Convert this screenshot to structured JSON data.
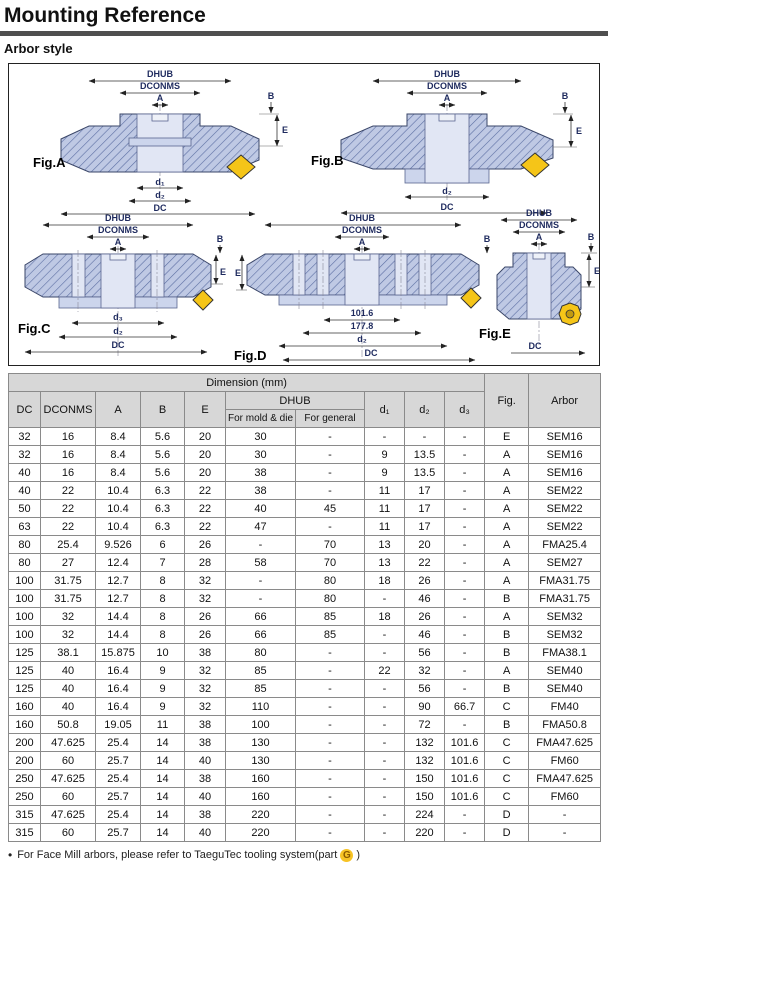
{
  "page": {
    "title": "Mounting Reference",
    "subtitle": "Arbor style",
    "footnote": {
      "bullet": "•",
      "prefix": "For Face Mill arbors, please refer to TaeguTec tooling system(part",
      "g": "G",
      "suffix": ")"
    }
  },
  "colors": {
    "insert_yellow": "#f5c518",
    "body_blue": "#bfc9e4",
    "hatch_blue": "#5d6fa3",
    "header_gray": "#d7d7d7",
    "title_rule_gray": "#4f4f4f"
  },
  "figures": [
    {
      "name": "Fig.A",
      "labels": {
        "dhub": "DHUB",
        "dconms": "DCONMS",
        "a": "A",
        "b": "B",
        "e": "E",
        "d1": "d₁",
        "d2": "d₂",
        "dc": "DC"
      }
    },
    {
      "name": "Fig.B",
      "labels": {
        "dhub": "DHUB",
        "dconms": "DCONMS",
        "a": "A",
        "b": "B",
        "e": "E",
        "d2": "d₂",
        "dc": "DC"
      }
    },
    {
      "name": "Fig.C",
      "labels": {
        "dhub": "DHUB",
        "dconms": "DCONMS",
        "a": "A",
        "b": "B",
        "e": "E",
        "d3": "d₃",
        "d2": "d₂",
        "dc": "DC"
      }
    },
    {
      "name": "Fig.D",
      "labels": {
        "dhub": "DHUB",
        "dconms": "DCONMS",
        "a": "A",
        "b": "B",
        "e": "E",
        "dim1": "101.6",
        "dim2": "177.8",
        "d2": "d₂",
        "dc": "DC"
      }
    },
    {
      "name": "Fig.E",
      "labels": {
        "dhub": "DHUB",
        "dconms": "DCONMS",
        "a": "A",
        "b": "B",
        "e": "E",
        "dc": "DC"
      }
    }
  ],
  "table": {
    "title": "Dimension (mm)",
    "headers": {
      "dc": "DC",
      "dconms": "DCONMS",
      "a": "A",
      "b": "B",
      "e": "E",
      "dhub": "DHUB",
      "mold": "For mold & die",
      "general": "For general",
      "d1": "d₁",
      "d2": "d₂",
      "d3": "d₃",
      "fig": "Fig.",
      "arbor": "Arbor"
    },
    "rows": [
      [
        "32",
        "16",
        "8.4",
        "5.6",
        "20",
        "30",
        "-",
        "-",
        "-",
        "-",
        "E",
        "SEM16"
      ],
      [
        "32",
        "16",
        "8.4",
        "5.6",
        "20",
        "30",
        "-",
        "9",
        "13.5",
        "-",
        "A",
        "SEM16"
      ],
      [
        "40",
        "16",
        "8.4",
        "5.6",
        "20",
        "38",
        "-",
        "9",
        "13.5",
        "-",
        "A",
        "SEM16"
      ],
      [
        "40",
        "22",
        "10.4",
        "6.3",
        "22",
        "38",
        "-",
        "11",
        "17",
        "-",
        "A",
        "SEM22"
      ],
      [
        "50",
        "22",
        "10.4",
        "6.3",
        "22",
        "40",
        "45",
        "11",
        "17",
        "-",
        "A",
        "SEM22"
      ],
      [
        "63",
        "22",
        "10.4",
        "6.3",
        "22",
        "47",
        "-",
        "11",
        "17",
        "-",
        "A",
        "SEM22"
      ],
      [
        "80",
        "25.4",
        "9.526",
        "6",
        "26",
        "-",
        "70",
        "13",
        "20",
        "-",
        "A",
        "FMA25.4"
      ],
      [
        "80",
        "27",
        "12.4",
        "7",
        "28",
        "58",
        "70",
        "13",
        "22",
        "-",
        "A",
        "SEM27"
      ],
      [
        "100",
        "31.75",
        "12.7",
        "8",
        "32",
        "-",
        "80",
        "18",
        "26",
        "-",
        "A",
        "FMA31.75"
      ],
      [
        "100",
        "31.75",
        "12.7",
        "8",
        "32",
        "-",
        "80",
        "-",
        "46",
        "-",
        "B",
        "FMA31.75"
      ],
      [
        "100",
        "32",
        "14.4",
        "8",
        "26",
        "66",
        "85",
        "18",
        "26",
        "-",
        "A",
        "SEM32"
      ],
      [
        "100",
        "32",
        "14.4",
        "8",
        "26",
        "66",
        "85",
        "-",
        "46",
        "-",
        "B",
        "SEM32"
      ],
      [
        "125",
        "38.1",
        "15.875",
        "10",
        "38",
        "80",
        "-",
        "-",
        "56",
        "-",
        "B",
        "FMA38.1"
      ],
      [
        "125",
        "40",
        "16.4",
        "9",
        "32",
        "85",
        "-",
        "22",
        "32",
        "-",
        "A",
        "SEM40"
      ],
      [
        "125",
        "40",
        "16.4",
        "9",
        "32",
        "85",
        "-",
        "-",
        "56",
        "-",
        "B",
        "SEM40"
      ],
      [
        "160",
        "40",
        "16.4",
        "9",
        "32",
        "110",
        "-",
        "-",
        "90",
        "66.7",
        "C",
        "FM40"
      ],
      [
        "160",
        "50.8",
        "19.05",
        "11",
        "38",
        "100",
        "-",
        "-",
        "72",
        "-",
        "B",
        "FMA50.8"
      ],
      [
        "200",
        "47.625",
        "25.4",
        "14",
        "38",
        "130",
        "-",
        "-",
        "132",
        "101.6",
        "C",
        "FMA47.625"
      ],
      [
        "200",
        "60",
        "25.7",
        "14",
        "40",
        "130",
        "-",
        "-",
        "132",
        "101.6",
        "C",
        "FM60"
      ],
      [
        "250",
        "47.625",
        "25.4",
        "14",
        "38",
        "160",
        "-",
        "-",
        "150",
        "101.6",
        "C",
        "FMA47.625"
      ],
      [
        "250",
        "60",
        "25.7",
        "14",
        "40",
        "160",
        "-",
        "-",
        "150",
        "101.6",
        "C",
        "FM60"
      ],
      [
        "315",
        "47.625",
        "25.4",
        "14",
        "38",
        "220",
        "-",
        "-",
        "224",
        "-",
        "D",
        "-"
      ],
      [
        "315",
        "60",
        "25.7",
        "14",
        "40",
        "220",
        "-",
        "-",
        "220",
        "-",
        "D",
        "-"
      ]
    ]
  }
}
